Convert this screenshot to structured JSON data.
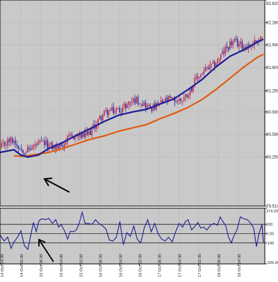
{
  "chart_data": [
    {
      "type": "candlestick",
      "title": "",
      "ylim": [
        79.51,
        82.62
      ],
      "y_ticks": [
        {
          "value": 82.62,
          "label": "82.620"
        },
        {
          "value": 82.28,
          "label": "82.280"
        },
        {
          "value": 81.94,
          "label": "81.940"
        },
        {
          "value": 81.6,
          "label": "81.600"
        },
        {
          "value": 81.25,
          "label": "81.250"
        },
        {
          "value": 80.93,
          "label": "80.930"
        },
        {
          "value": 80.59,
          "label": "80.590"
        },
        {
          "value": 80.25,
          "label": "80.250"
        },
        {
          "value": 79.51,
          "label": "79.510"
        }
      ],
      "grid": true,
      "colors": {
        "up_candle": "#c0143c",
        "down_candle": "#1a1aa0",
        "ma_fast": "#1c1c96",
        "ma_slow": "#e05a10"
      },
      "ma_fast": [
        [
          0,
          80.32
        ],
        [
          10,
          80.34
        ],
        [
          20,
          80.36
        ],
        [
          30,
          80.28
        ],
        [
          40,
          80.25
        ],
        [
          55,
          80.28
        ],
        [
          70,
          80.38
        ],
        [
          90,
          80.47
        ],
        [
          110,
          80.58
        ],
        [
          130,
          80.68
        ],
        [
          150,
          80.79
        ],
        [
          170,
          80.88
        ],
        [
          190,
          80.93
        ],
        [
          210,
          80.97
        ],
        [
          230,
          81.05
        ],
        [
          250,
          81.13
        ],
        [
          270,
          81.27
        ],
        [
          290,
          81.42
        ],
        [
          310,
          81.61
        ],
        [
          330,
          81.77
        ],
        [
          350,
          81.87
        ],
        [
          370,
          81.99
        ],
        [
          378,
          82.03
        ]
      ],
      "ma_slow": [
        [
          20,
          80.27
        ],
        [
          35,
          80.26
        ],
        [
          50,
          80.29
        ],
        [
          70,
          80.32
        ],
        [
          90,
          80.38
        ],
        [
          110,
          80.45
        ],
        [
          130,
          80.52
        ],
        [
          150,
          80.57
        ],
        [
          170,
          80.64
        ],
        [
          190,
          80.69
        ],
        [
          210,
          80.74
        ],
        [
          230,
          80.83
        ],
        [
          250,
          80.91
        ],
        [
          270,
          81.0
        ],
        [
          290,
          81.12
        ],
        [
          310,
          81.27
        ],
        [
          330,
          81.44
        ],
        [
          350,
          81.61
        ],
        [
          370,
          81.76
        ],
        [
          378,
          81.8
        ]
      ]
    },
    {
      "type": "line",
      "title": "",
      "ylim": [
        -326.996,
        274.207
      ],
      "y_ticks": [
        {
          "value": 274.207,
          "label": "274.207"
        },
        {
          "value": 100,
          "label": "100"
        },
        {
          "value": 0,
          "label": "0.00"
        },
        {
          "value": -100,
          "label": "-100"
        },
        {
          "value": -326.996,
          "label": "-326.996"
        }
      ],
      "levels": [
        100,
        0,
        -100
      ],
      "series": [
        {
          "color": "#1c1c96",
          "values": [
            [
              0,
              -15
            ],
            [
              6,
              -80
            ],
            [
              11,
              -38
            ],
            [
              16,
              -160
            ],
            [
              20,
              -90
            ],
            [
              25,
              -40
            ],
            [
              30,
              30
            ],
            [
              35,
              -130
            ],
            [
              40,
              -170
            ],
            [
              43,
              -60
            ],
            [
              48,
              120
            ],
            [
              52,
              20
            ],
            [
              56,
              140
            ],
            [
              60,
              160
            ],
            [
              65,
              150
            ],
            [
              70,
              165
            ],
            [
              75,
              110
            ],
            [
              80,
              150
            ],
            [
              84,
              70
            ],
            [
              88,
              95
            ],
            [
              93,
              25
            ],
            [
              97,
              -60
            ],
            [
              101,
              25
            ],
            [
              106,
              20
            ],
            [
              110,
              45
            ],
            [
              114,
              120
            ],
            [
              118,
              230
            ],
            [
              122,
              110
            ],
            [
              127,
              110
            ],
            [
              132,
              100
            ],
            [
              137,
              150
            ],
            [
              142,
              110
            ],
            [
              147,
              85
            ],
            [
              152,
              50
            ],
            [
              157,
              -70
            ],
            [
              162,
              -80
            ],
            [
              167,
              -40
            ],
            [
              172,
              130
            ],
            [
              177,
              -120
            ],
            [
              182,
              10
            ],
            [
              187,
              -30
            ],
            [
              192,
              80
            ],
            [
              197,
              -60
            ],
            [
              202,
              -100
            ],
            [
              207,
              60
            ],
            [
              212,
              150
            ],
            [
              217,
              20
            ],
            [
              222,
              110
            ],
            [
              227,
              0
            ],
            [
              232,
              -60
            ],
            [
              237,
              -80
            ],
            [
              242,
              -40
            ],
            [
              247,
              -90
            ],
            [
              252,
              20
            ],
            [
              257,
              110
            ],
            [
              262,
              70
            ],
            [
              266,
              130
            ],
            [
              270,
              150
            ],
            [
              275,
              40
            ],
            [
              280,
              80
            ],
            [
              284,
              120
            ],
            [
              288,
              60
            ],
            [
              292,
              70
            ],
            [
              297,
              40
            ],
            [
              302,
              90
            ],
            [
              307,
              110
            ],
            [
              312,
              90
            ],
            [
              316,
              180
            ],
            [
              320,
              130
            ],
            [
              324,
              80
            ],
            [
              328,
              -40
            ],
            [
              332,
              -100
            ],
            [
              336,
              -20
            ],
            [
              340,
              40
            ],
            [
              345,
              180
            ],
            [
              350,
              160
            ],
            [
              355,
              150
            ],
            [
              360,
              110
            ],
            [
              364,
              60
            ],
            [
              368,
              -140
            ],
            [
              372,
              10
            ],
            [
              376,
              100
            ],
            [
              378,
              -100
            ]
          ]
        }
      ]
    }
  ],
  "x_axis": {
    "ticks": [
      {
        "bar": 2,
        "label": "14 Oct 14:30"
      },
      {
        "bar": 30,
        "label": "14 Oct 22:30"
      },
      {
        "bar": 58,
        "label": "15 Oct 06:30"
      },
      {
        "bar": 87,
        "label": "15 Oct 14:30"
      },
      {
        "bar": 115,
        "label": "15 Oct 22:30"
      },
      {
        "bar": 143,
        "label": "16 Oct 06:30"
      },
      {
        "bar": 172,
        "label": "16 Oct 14:30"
      },
      {
        "bar": 200,
        "label": "16 Oct 22:30"
      },
      {
        "bar": 228,
        "label": "17 Oct 06:30"
      },
      {
        "bar": 257,
        "label": "17 Oct 14:30"
      },
      {
        "bar": 285,
        "label": "17 Oct 22:30"
      },
      {
        "bar": 313,
        "label": "18 Oct 06:30"
      },
      {
        "bar": 342,
        "label": "18 Oct 14:30"
      }
    ]
  }
}
